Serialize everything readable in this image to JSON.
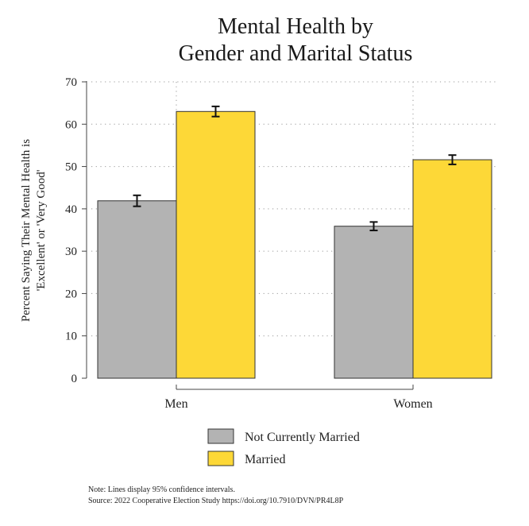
{
  "chart_data": {
    "type": "bar",
    "title": [
      "Mental Health by",
      "Gender and Marital Status"
    ],
    "ylabel": [
      "Percent Saying Their Mental Health is",
      "'Excellent' or 'Very Good'"
    ],
    "xlabel": "",
    "categories": [
      "Men",
      "Women"
    ],
    "ylim": [
      0,
      70
    ],
    "yticks": [
      "0",
      "10",
      "20",
      "30",
      "40",
      "50",
      "60",
      "70"
    ],
    "grid": "dotted horizontal and vertical",
    "legend_position": "bottom",
    "series": [
      {
        "name": "Not Currently Married",
        "color": "#b3b3b3",
        "values": [
          41.9,
          35.9
        ],
        "ci": [
          [
            40.6,
            43.2
          ],
          [
            34.9,
            36.9
          ]
        ]
      },
      {
        "name": "Married",
        "color": "#fdd837",
        "values": [
          63.0,
          51.6
        ],
        "ci": [
          [
            61.8,
            64.2
          ],
          [
            50.5,
            52.7
          ]
        ]
      }
    ],
    "notes": [
      "Note: Lines display 95% confidence intervals.",
      "Source: 2022 Cooperative Election Study https://doi.org/10.7910/DVN/PR4L8P"
    ]
  }
}
